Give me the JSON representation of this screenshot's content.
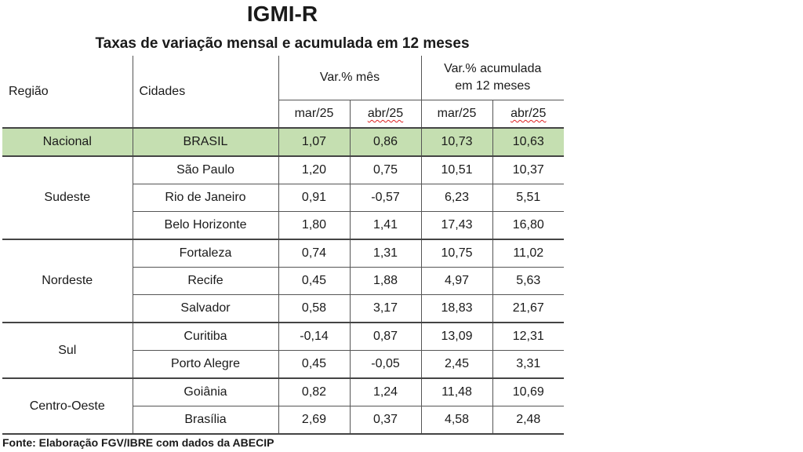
{
  "title": "IGMI-R",
  "subtitle": "Taxas de variação mensal e acumulada em 12 meses",
  "header": {
    "regiao": "Região",
    "cidades": "Cidades",
    "var_mes": "Var.% mês",
    "var_acum_line1": "Var.% acumulada",
    "var_acum_line2": "em 12 meses",
    "mar25": "mar/25",
    "abr25": "abr/25"
  },
  "rows": [
    {
      "regiao": "Nacional",
      "cidade": "BRASIL",
      "mes_mar": "1,07",
      "mes_abr": "0,86",
      "acum_mar": "10,73",
      "acum_abr": "10,63"
    },
    {
      "regiao": "Sudeste",
      "cidade": "São Paulo",
      "mes_mar": "1,20",
      "mes_abr": "0,75",
      "acum_mar": "10,51",
      "acum_abr": "10,37"
    },
    {
      "regiao": "",
      "cidade": "Rio de Janeiro",
      "mes_mar": "0,91",
      "mes_abr": "-0,57",
      "acum_mar": "6,23",
      "acum_abr": "5,51"
    },
    {
      "regiao": "",
      "cidade": "Belo Horizonte",
      "mes_mar": "1,80",
      "mes_abr": "1,41",
      "acum_mar": "17,43",
      "acum_abr": "16,80"
    },
    {
      "regiao": "Nordeste",
      "cidade": "Fortaleza",
      "mes_mar": "0,74",
      "mes_abr": "1,31",
      "acum_mar": "10,75",
      "acum_abr": "11,02"
    },
    {
      "regiao": "",
      "cidade": "Recife",
      "mes_mar": "0,45",
      "mes_abr": "1,88",
      "acum_mar": "4,97",
      "acum_abr": "5,63"
    },
    {
      "regiao": "",
      "cidade": "Salvador",
      "mes_mar": "0,58",
      "mes_abr": "3,17",
      "acum_mar": "18,83",
      "acum_abr": "21,67"
    },
    {
      "regiao": "Sul",
      "cidade": "Curitiba",
      "mes_mar": "-0,14",
      "mes_abr": "0,87",
      "acum_mar": "13,09",
      "acum_abr": "12,31"
    },
    {
      "regiao": "",
      "cidade": "Porto Alegre",
      "mes_mar": "0,45",
      "mes_abr": "-0,05",
      "acum_mar": "2,45",
      "acum_abr": "3,31"
    },
    {
      "regiao": "Centro-Oeste",
      "cidade": "Goiânia",
      "mes_mar": "0,82",
      "mes_abr": "1,24",
      "acum_mar": "11,48",
      "acum_abr": "10,69"
    },
    {
      "regiao": "",
      "cidade": "Brasília",
      "mes_mar": "2,69",
      "mes_abr": "0,37",
      "acum_mar": "4,58",
      "acum_abr": "2,48"
    }
  ],
  "colors": {
    "highlight_row": "#c5dfb1",
    "spellcheck_underline": "#dd2222"
  },
  "note": "Fonte: Elaboração FGV/IBRE com dados da ABECIP"
}
